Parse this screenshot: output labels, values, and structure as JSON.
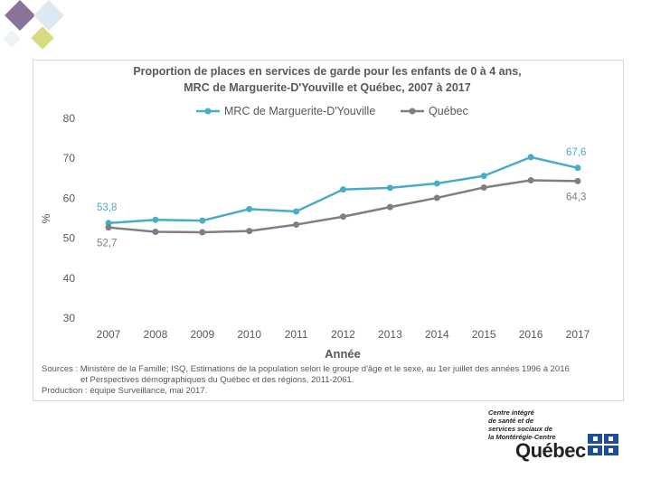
{
  "chart_data": {
    "type": "line",
    "title_line1": "Proportion de places en services de garde pour les enfants de 0 à 4 ans,",
    "title_line2": "MRC de Marguerite-D'Youville et Québec, 2007 à 2017",
    "xlabel": "Année",
    "ylabel": "%",
    "ylim": [
      30,
      80
    ],
    "yticks": [
      "30",
      "40",
      "50",
      "60",
      "70",
      "80"
    ],
    "categories": [
      "2007",
      "2008",
      "2009",
      "2010",
      "2011",
      "2012",
      "2013",
      "2014",
      "2015",
      "2016",
      "2017"
    ],
    "series": [
      {
        "name": "MRC de Marguerite-D'Youville",
        "color": "#4bacc6",
        "values": [
          53.8,
          54.6,
          54.4,
          57.3,
          56.7,
          62.2,
          62.6,
          63.7,
          65.6,
          70.3,
          67.6
        ]
      },
      {
        "name": "Québec",
        "color": "#7f7f7f",
        "values": [
          52.7,
          51.6,
          51.5,
          51.8,
          53.4,
          55.4,
          57.8,
          60.1,
          62.7,
          64.5,
          64.3
        ]
      }
    ],
    "data_labels": [
      {
        "series": 0,
        "index": 0,
        "text": "53,8"
      },
      {
        "series": 0,
        "index": 10,
        "text": "67,6"
      },
      {
        "series": 1,
        "index": 0,
        "text": "52,7"
      },
      {
        "series": 1,
        "index": 10,
        "text": "64,3"
      }
    ]
  },
  "sources": {
    "line1": "Sources : Ministère de la Famille; ISQ, Estimations de la population selon le groupe d'âge et le sexe, au 1er juillet des années 1996 à 2016",
    "line2": "et Perspectives démographiques du Québec et des régions, 2011-2061.",
    "line3": "Production : équipe Surveillance, mai 2017."
  },
  "logo": {
    "line1": "Centre intégré",
    "line2": "de santé et de",
    "line3": "services sociaux de",
    "line4": "la Montérégie-Centre",
    "wordmark": "Québec"
  }
}
